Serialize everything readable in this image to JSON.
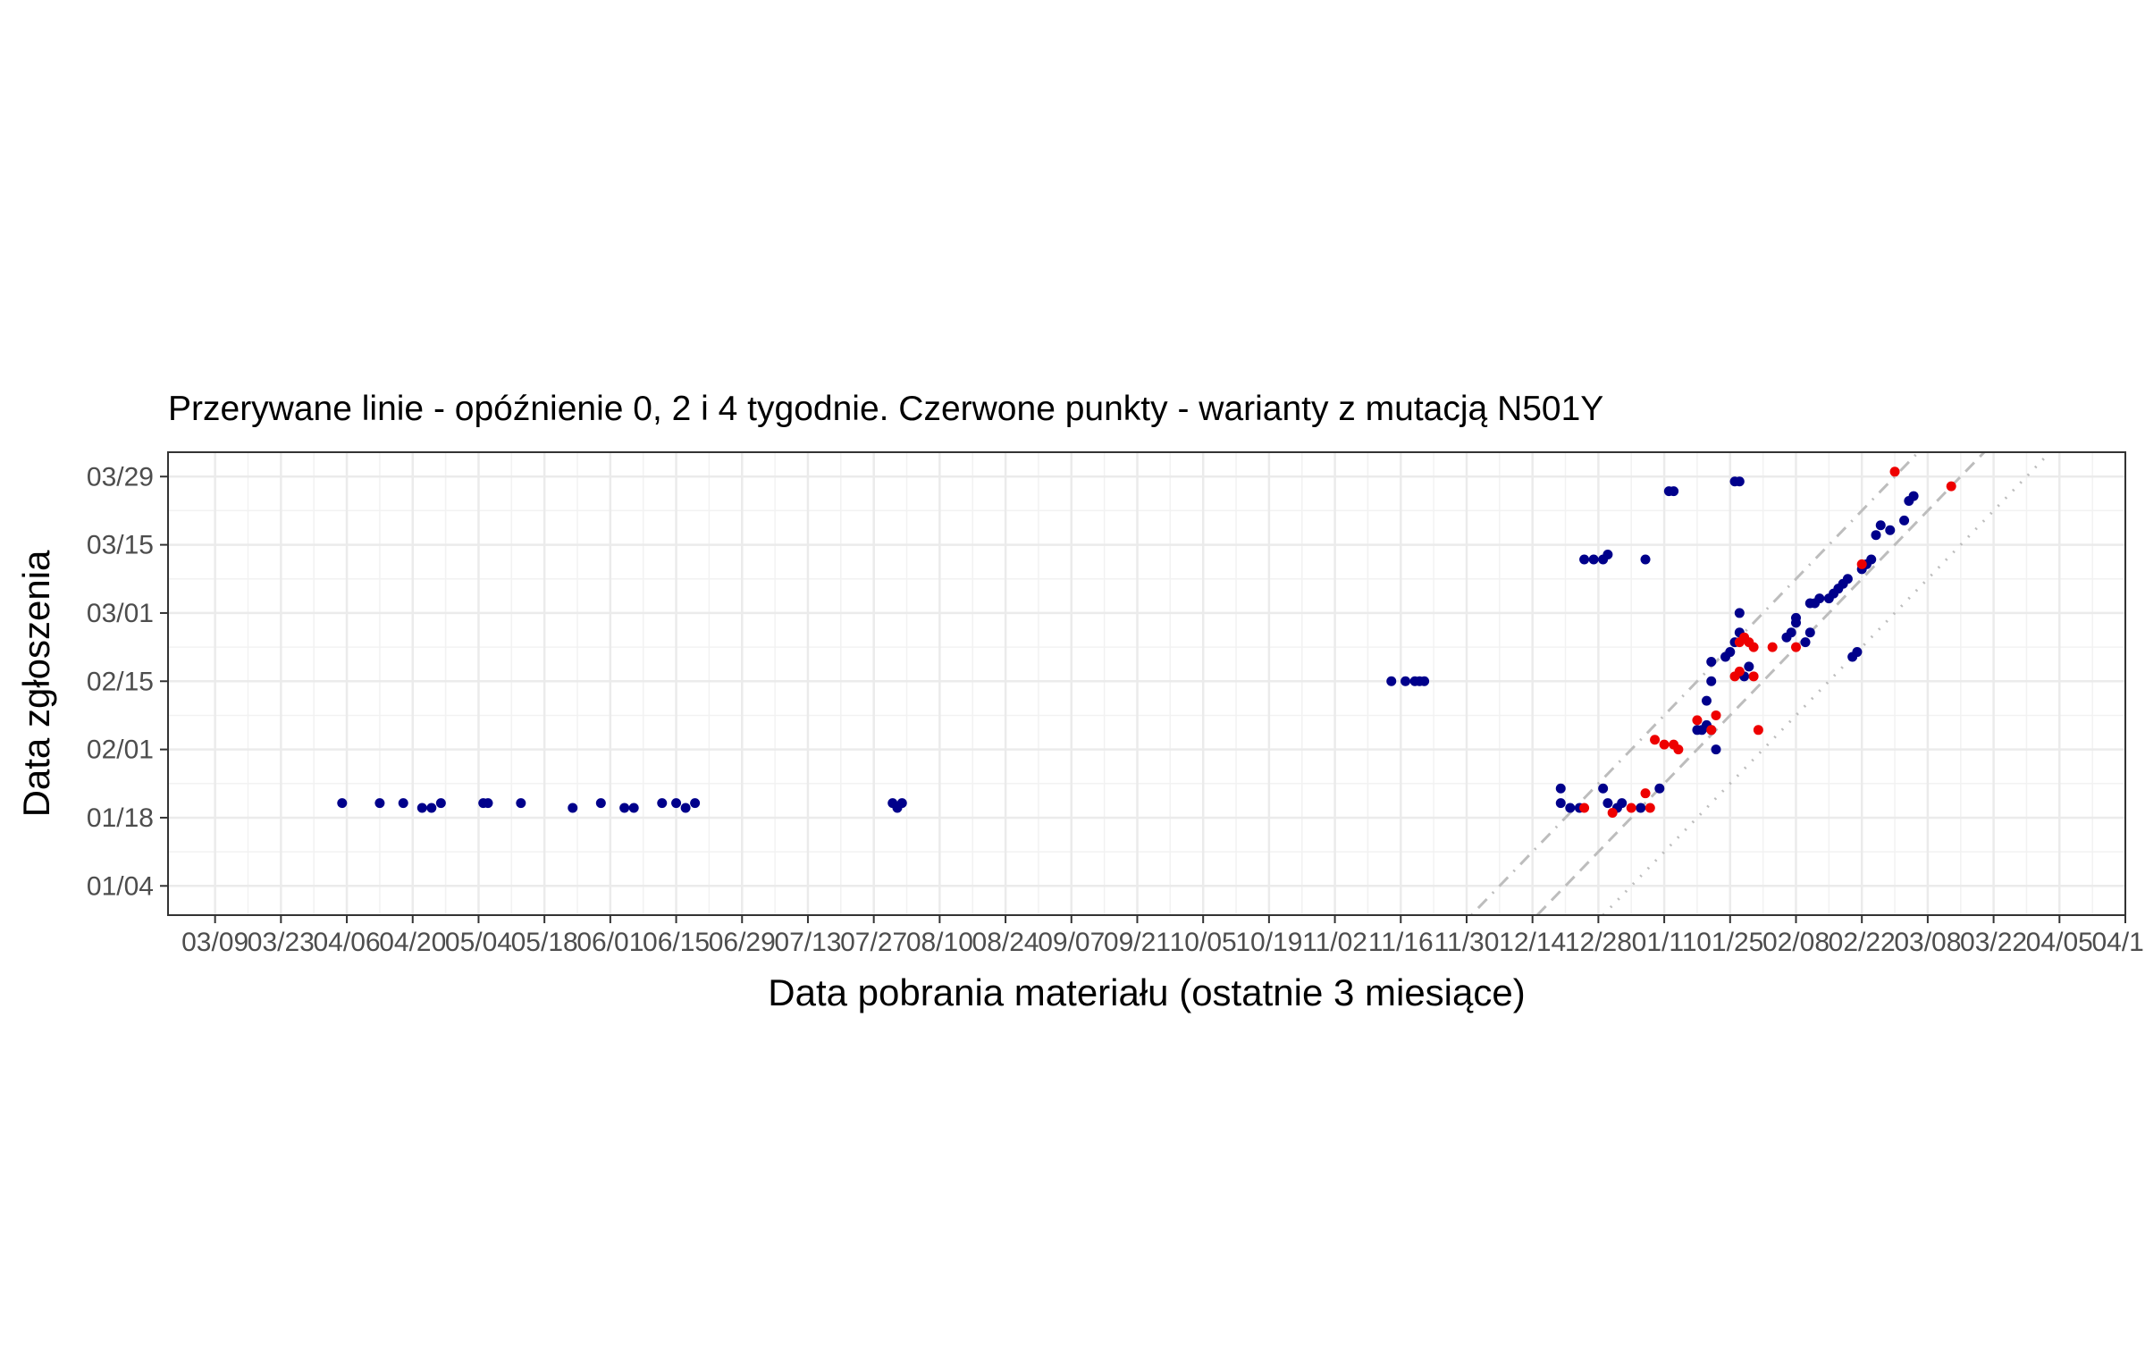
{
  "chart_data": {
    "type": "scatter",
    "title": "Przerywane linie - opóźnienie 0, 2 i 4 tygodnie. Czerwone punkty - warianty z mutacją N501Y",
    "xlabel": "Data pobrania materiału (ostatnie 3 miesiące)",
    "ylabel": "Data zgłoszenia",
    "x_axis": {
      "type": "date",
      "range": [
        "2020-02-28",
        "2021-04-19"
      ],
      "ticks": [
        "2020-03-09",
        "2020-03-23",
        "2020-04-06",
        "2020-04-20",
        "2020-05-04",
        "2020-05-18",
        "2020-06-01",
        "2020-06-15",
        "2020-06-29",
        "2020-07-13",
        "2020-07-27",
        "2020-08-10",
        "2020-08-24",
        "2020-09-07",
        "2020-09-21",
        "2020-10-05",
        "2020-10-19",
        "2020-11-02",
        "2020-11-16",
        "2020-11-30",
        "2020-12-14",
        "2020-12-28",
        "2021-01-11",
        "2021-01-25",
        "2021-02-08",
        "2021-02-22",
        "2021-03-08",
        "2021-03-22",
        "2021-04-05",
        "2021-04-19"
      ],
      "tick_labels": [
        "03/09",
        "03/23",
        "04/06",
        "04/20",
        "05/04",
        "05/18",
        "06/01",
        "06/15",
        "06/29",
        "07/13",
        "07/27",
        "08/10",
        "08/24",
        "09/07",
        "09/21",
        "10/05",
        "10/19",
        "11/02",
        "11/16",
        "11/30",
        "12/14",
        "12/28",
        "01/11",
        "01/25",
        "02/08",
        "02/22",
        "03/08",
        "03/22",
        "04/05",
        "04/19"
      ]
    },
    "y_axis": {
      "type": "date",
      "range": [
        "2020-12-29",
        "2021-04-03"
      ],
      "ticks": [
        "2021-01-04",
        "2021-01-18",
        "2021-02-01",
        "2021-02-15",
        "2021-03-01",
        "2021-03-15",
        "2021-03-29"
      ],
      "tick_labels": [
        "01/04",
        "01/18",
        "02/01",
        "02/15",
        "03/01",
        "03/15",
        "03/29"
      ]
    },
    "grid": true,
    "reference_lines": [
      {
        "name": "opóźnienie 0",
        "lag_days": 0,
        "style": "dotted",
        "color": "#bdbdbd"
      },
      {
        "name": "opóźnienie 2 tygodnie",
        "lag_days": 14,
        "style": "dashed",
        "color": "#bdbdbd"
      },
      {
        "name": "opóźnienie 4 tygodnie",
        "lag_days": 28,
        "style": "dotdash",
        "color": "#bdbdbd"
      }
    ],
    "colors": {
      "other": "#00008b",
      "n501y": "#ee0000"
    },
    "series": [
      {
        "key": "other",
        "color": "#00008b",
        "points": [
          [
            "2020-04-05",
            "2021-01-21"
          ],
          [
            "2020-04-13",
            "2021-01-21"
          ],
          [
            "2020-04-18",
            "2021-01-21"
          ],
          [
            "2020-04-22",
            "2021-01-20"
          ],
          [
            "2020-04-24",
            "2021-01-20"
          ],
          [
            "2020-04-26",
            "2021-01-21"
          ],
          [
            "2020-05-05",
            "2021-01-21"
          ],
          [
            "2020-05-06",
            "2021-01-21"
          ],
          [
            "2020-05-13",
            "2021-01-21"
          ],
          [
            "2020-05-24",
            "2021-01-20"
          ],
          [
            "2020-05-30",
            "2021-01-21"
          ],
          [
            "2020-06-04",
            "2021-01-20"
          ],
          [
            "2020-06-06",
            "2021-01-20"
          ],
          [
            "2020-06-12",
            "2021-01-21"
          ],
          [
            "2020-06-15",
            "2021-01-21"
          ],
          [
            "2020-06-17",
            "2021-01-20"
          ],
          [
            "2020-06-19",
            "2021-01-21"
          ],
          [
            "2020-07-31",
            "2021-01-21"
          ],
          [
            "2020-08-01",
            "2021-01-20"
          ],
          [
            "2020-08-02",
            "2021-01-21"
          ],
          [
            "2020-11-14",
            "2021-02-15"
          ],
          [
            "2020-11-17",
            "2021-02-15"
          ],
          [
            "2020-11-19",
            "2021-02-15"
          ],
          [
            "2020-11-20",
            "2021-02-15"
          ],
          [
            "2020-11-21",
            "2021-02-15"
          ],
          [
            "2020-12-20",
            "2021-01-24"
          ],
          [
            "2020-12-20",
            "2021-01-21"
          ],
          [
            "2020-12-22",
            "2021-01-20"
          ],
          [
            "2020-12-24",
            "2021-01-20"
          ],
          [
            "2020-12-25",
            "2021-03-12"
          ],
          [
            "2020-12-27",
            "2021-03-12"
          ],
          [
            "2020-12-29",
            "2021-03-12"
          ],
          [
            "2020-12-30",
            "2021-03-13"
          ],
          [
            "2020-12-29",
            "2021-01-24"
          ],
          [
            "2020-12-30",
            "2021-01-21"
          ],
          [
            "2021-01-01",
            "2021-01-20"
          ],
          [
            "2021-01-02",
            "2021-01-21"
          ],
          [
            "2021-01-06",
            "2021-01-20"
          ],
          [
            "2021-01-07",
            "2021-03-12"
          ],
          [
            "2021-01-10",
            "2021-01-24"
          ],
          [
            "2021-01-12",
            "2021-03-26"
          ],
          [
            "2021-01-13",
            "2021-03-26"
          ],
          [
            "2021-01-18",
            "2021-02-05"
          ],
          [
            "2021-01-19",
            "2021-02-05"
          ],
          [
            "2021-01-20",
            "2021-02-06"
          ],
          [
            "2021-01-20",
            "2021-02-11"
          ],
          [
            "2021-01-21",
            "2021-02-05"
          ],
          [
            "2021-01-21",
            "2021-02-19"
          ],
          [
            "2021-01-21",
            "2021-02-15"
          ],
          [
            "2021-01-22",
            "2021-02-01"
          ],
          [
            "2021-01-24",
            "2021-02-20"
          ],
          [
            "2021-01-25",
            "2021-02-21"
          ],
          [
            "2021-01-26",
            "2021-02-23"
          ],
          [
            "2021-01-27",
            "2021-02-25"
          ],
          [
            "2021-01-26",
            "2021-03-28"
          ],
          [
            "2021-01-27",
            "2021-03-28"
          ],
          [
            "2021-01-27",
            "2021-03-01"
          ],
          [
            "2021-01-28",
            "2021-02-16"
          ],
          [
            "2021-01-29",
            "2021-02-18"
          ],
          [
            "2021-02-06",
            "2021-02-24"
          ],
          [
            "2021-02-07",
            "2021-02-25"
          ],
          [
            "2021-02-08",
            "2021-02-27"
          ],
          [
            "2021-02-08",
            "2021-02-28"
          ],
          [
            "2021-02-10",
            "2021-02-23"
          ],
          [
            "2021-02-11",
            "2021-02-25"
          ],
          [
            "2021-02-11",
            "2021-03-03"
          ],
          [
            "2021-02-12",
            "2021-03-03"
          ],
          [
            "2021-02-13",
            "2021-03-04"
          ],
          [
            "2021-02-15",
            "2021-03-04"
          ],
          [
            "2021-02-16",
            "2021-03-05"
          ],
          [
            "2021-02-17",
            "2021-03-06"
          ],
          [
            "2021-02-18",
            "2021-03-07"
          ],
          [
            "2021-02-19",
            "2021-03-08"
          ],
          [
            "2021-02-20",
            "2021-02-20"
          ],
          [
            "2021-02-21",
            "2021-02-21"
          ],
          [
            "2021-02-22",
            "2021-03-10"
          ],
          [
            "2021-02-23",
            "2021-03-11"
          ],
          [
            "2021-02-24",
            "2021-03-12"
          ],
          [
            "2021-02-25",
            "2021-03-17"
          ],
          [
            "2021-02-26",
            "2021-03-19"
          ],
          [
            "2021-02-28",
            "2021-03-18"
          ],
          [
            "2021-03-03",
            "2021-03-20"
          ],
          [
            "2021-03-04",
            "2021-03-24"
          ],
          [
            "2021-03-05",
            "2021-03-25"
          ]
        ]
      },
      {
        "key": "n501y",
        "color": "#ee0000",
        "points": [
          [
            "2020-12-25",
            "2021-01-20"
          ],
          [
            "2020-12-31",
            "2021-01-19"
          ],
          [
            "2021-01-04",
            "2021-01-20"
          ],
          [
            "2021-01-07",
            "2021-01-23"
          ],
          [
            "2021-01-08",
            "2021-01-20"
          ],
          [
            "2021-01-09",
            "2021-02-03"
          ],
          [
            "2021-01-11",
            "2021-02-02"
          ],
          [
            "2021-01-13",
            "2021-02-02"
          ],
          [
            "2021-01-14",
            "2021-02-01"
          ],
          [
            "2021-01-18",
            "2021-02-07"
          ],
          [
            "2021-01-21",
            "2021-02-05"
          ],
          [
            "2021-01-22",
            "2021-02-08"
          ],
          [
            "2021-01-26",
            "2021-02-16"
          ],
          [
            "2021-01-27",
            "2021-02-17"
          ],
          [
            "2021-01-27",
            "2021-02-23"
          ],
          [
            "2021-01-28",
            "2021-02-24"
          ],
          [
            "2021-01-29",
            "2021-02-23"
          ],
          [
            "2021-01-30",
            "2021-02-16"
          ],
          [
            "2021-01-30",
            "2021-02-22"
          ],
          [
            "2021-01-31",
            "2021-02-05"
          ],
          [
            "2021-02-03",
            "2021-02-22"
          ],
          [
            "2021-02-08",
            "2021-02-22"
          ],
          [
            "2021-02-22",
            "2021-03-11"
          ],
          [
            "2021-03-01",
            "2021-03-30"
          ],
          [
            "2021-03-13",
            "2021-03-27"
          ]
        ]
      }
    ]
  }
}
